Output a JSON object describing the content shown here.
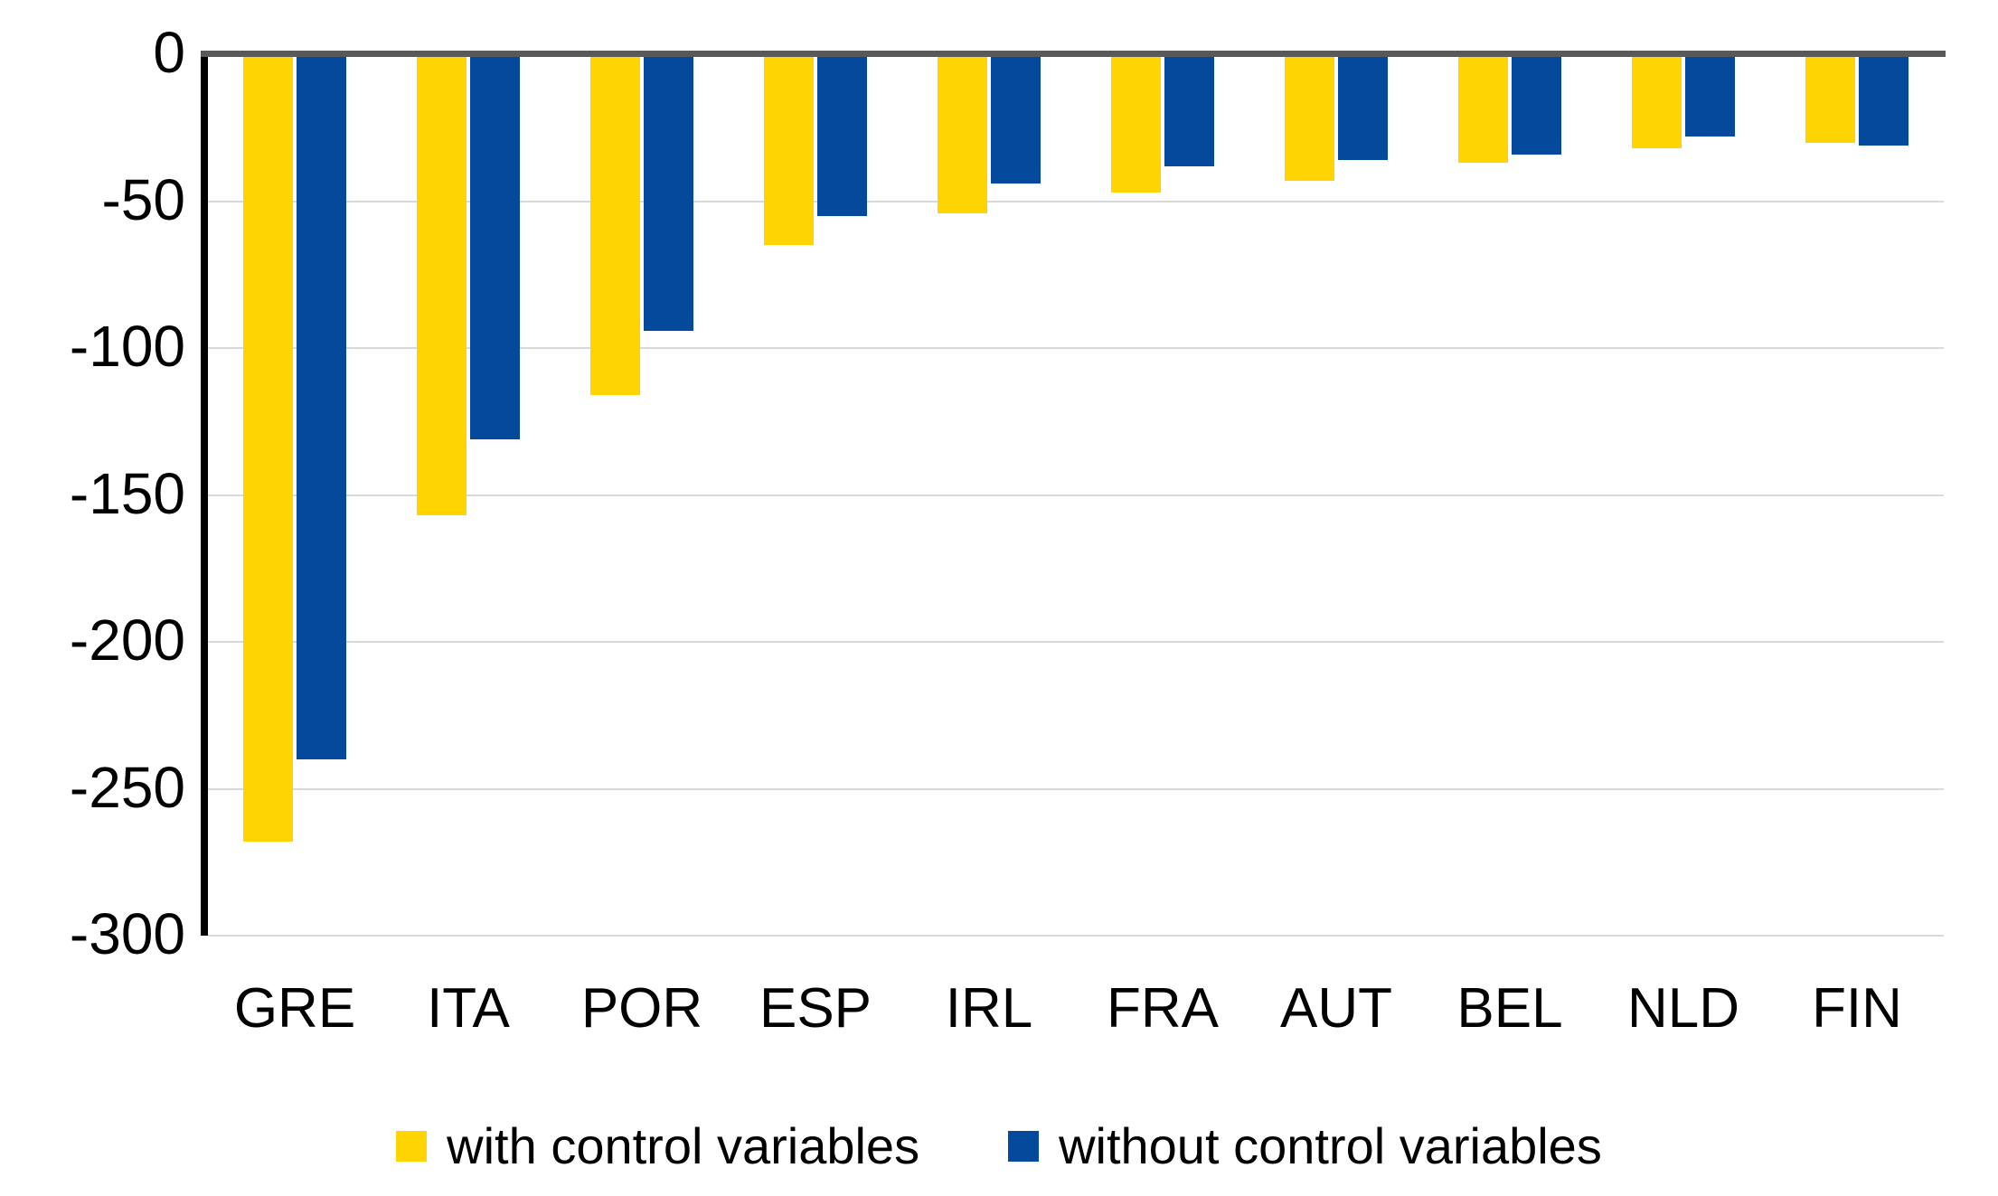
{
  "chart_data": {
    "type": "bar",
    "title": "",
    "xlabel": "",
    "ylabel": "",
    "categories": [
      "GRE",
      "ITA",
      "POR",
      "ESP",
      "IRL",
      "FRA",
      "AUT",
      "BEL",
      "NLD",
      "FIN"
    ],
    "series": [
      {
        "name": "with control variables",
        "color": "#FFD400",
        "values": [
          -268,
          -157,
          -116,
          -65,
          -54,
          -47,
          -43,
          -37,
          -32,
          -30
        ]
      },
      {
        "name": "without control variables",
        "color": "#04499B",
        "values": [
          -240,
          -131,
          -94,
          -55,
          -44,
          -38,
          -36,
          -34,
          -28,
          -31
        ]
      }
    ],
    "ylim": [
      -300,
      0
    ],
    "yticks": [
      0,
      -50,
      -100,
      -150,
      -200,
      -250,
      -300
    ],
    "grid": true,
    "gridline_color": "#D9D9D9",
    "zero_line_color": "#595959",
    "axis_line_color": "#000000",
    "legend_position": "bottom"
  }
}
